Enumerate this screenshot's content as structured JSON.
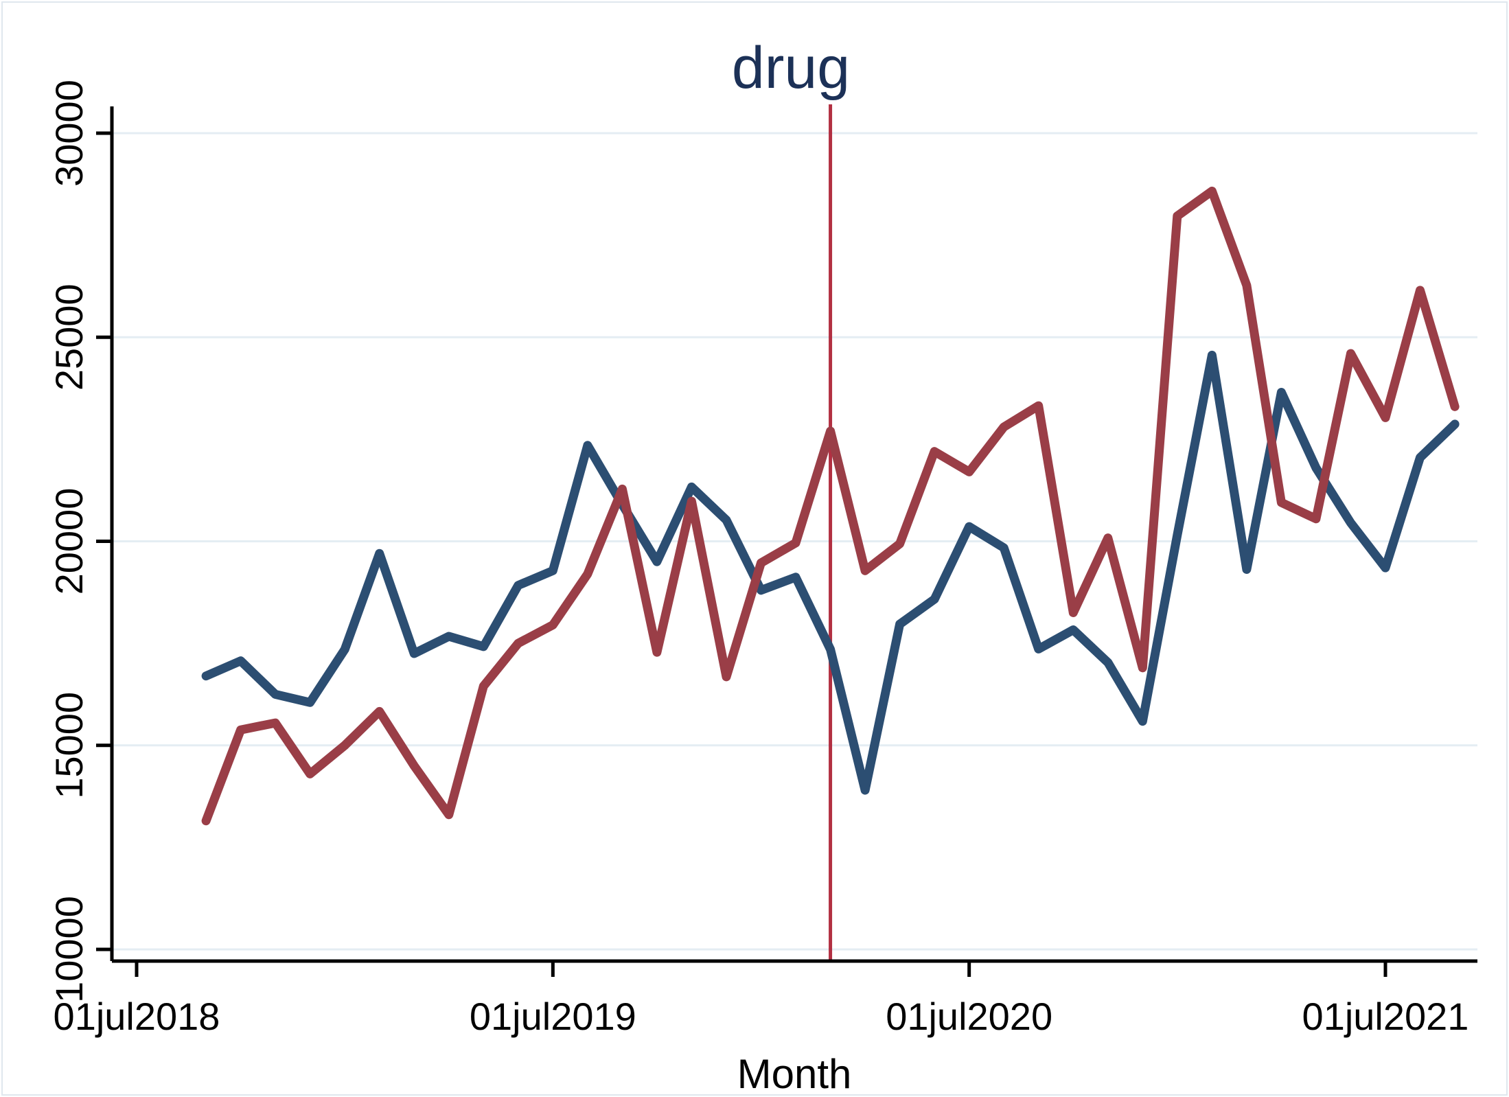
{
  "title": "drug",
  "xlabel": "Month",
  "chart_data": {
    "type": "line",
    "title": "drug",
    "xlabel": "Month",
    "ylabel": "",
    "ylim": [
      10000,
      30000
    ],
    "y_ticks": [
      10000,
      15000,
      20000,
      25000,
      30000
    ],
    "y_tick_labels": [
      "10000",
      "15000",
      "20000",
      "25000",
      "30000"
    ],
    "x_tick_labels": [
      "01jul2018",
      "01jul2019",
      "01jul2020",
      "01jul2021"
    ],
    "x_tick_months": [
      "2018-07",
      "2019-07",
      "2020-07",
      "2021-07"
    ],
    "grid": "horizontal",
    "legend": "none",
    "x": [
      "2018-09",
      "2018-10",
      "2018-11",
      "2018-12",
      "2019-01",
      "2019-02",
      "2019-03",
      "2019-04",
      "2019-05",
      "2019-06",
      "2019-07",
      "2019-08",
      "2019-09",
      "2019-10",
      "2019-11",
      "2019-12",
      "2020-01",
      "2020-02",
      "2020-03",
      "2020-04",
      "2020-05",
      "2020-06",
      "2020-07",
      "2020-08",
      "2020-09",
      "2020-10",
      "2020-11",
      "2020-12",
      "2021-01",
      "2021-02",
      "2021-03",
      "2021-04",
      "2021-05",
      "2021-06",
      "2021-07",
      "2021-08",
      "2021-09"
    ],
    "series": [
      {
        "name": "navy-series",
        "color": "#2c4e72",
        "values": [
          16700,
          17070,
          16250,
          16050,
          17350,
          19700,
          17250,
          17670,
          17420,
          18920,
          19280,
          22350,
          20900,
          19500,
          21330,
          20520,
          18800,
          19120,
          17350,
          13900,
          17970,
          18580,
          20360,
          19840,
          17360,
          17830,
          17030,
          15590,
          20150,
          24560,
          19310,
          23650,
          21800,
          20450,
          19350,
          22050,
          22870
        ]
      },
      {
        "name": "maroon-series",
        "color": "#9a3e47",
        "values": [
          13150,
          15380,
          15550,
          14300,
          15000,
          15830,
          14500,
          13300,
          16450,
          17500,
          17950,
          19200,
          21280,
          17280,
          20980,
          16680,
          19470,
          19960,
          22700,
          19280,
          19940,
          22200,
          21700,
          22800,
          23320,
          18250,
          20080,
          16900,
          27970,
          28580,
          26270,
          20950,
          20550,
          24600,
          23030,
          26150,
          23300
        ]
      }
    ],
    "vline": {
      "x": "2020-03",
      "label": "drug",
      "color": "#b23042"
    },
    "colors": {
      "navy": "#2c4e72",
      "maroon": "#9a3e47",
      "vline_red": "#b23042",
      "gridline": "#e4edf3",
      "axis": "#000000",
      "title_navy": "#1c3157"
    }
  }
}
